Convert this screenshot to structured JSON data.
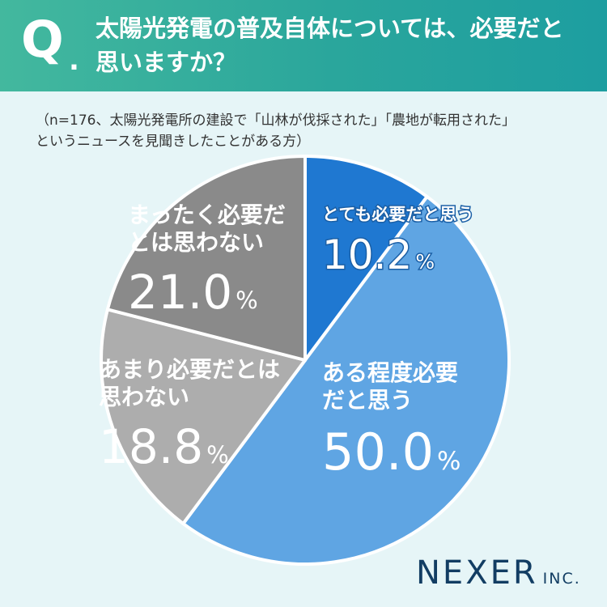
{
  "header": {
    "q_mark": "Q",
    "q_dot": ".",
    "question_line1": "太陽光発電の普及自体については、必要だと",
    "question_line2": "思いますか？"
  },
  "note": {
    "line1": "（n=176、太陽光発電所の建設で「山林が伐採された」「農地が転用された」",
    "line2": "というニュースを見聞きしたことがある方）"
  },
  "chart_data": {
    "type": "pie",
    "title": "太陽光発電の普及自体については、必要だと思いますか？",
    "n": 176,
    "slices": [
      {
        "label_lines": [
          "とても必要だと思う"
        ],
        "value": 10.2,
        "value_text": "10.2",
        "color": "#1f78d1"
      },
      {
        "label_lines": [
          "ある程度必要",
          "だと思う"
        ],
        "value": 50.0,
        "value_text": "50.0",
        "color": "#5fa5e3"
      },
      {
        "label_lines": [
          "あまり必要だとは",
          "思わない"
        ],
        "value": 18.8,
        "value_text": "18.8",
        "color": "#adadad"
      },
      {
        "label_lines": [
          "まったく必要だ",
          "とは思わない"
        ],
        "value": 21.0,
        "value_text": "21.0",
        "color": "#8a8a8a"
      }
    ],
    "percent_sign": "%",
    "start": "top",
    "direction": "clockwise"
  },
  "logo": {
    "main": "NEXER",
    "suffix": "INC."
  }
}
